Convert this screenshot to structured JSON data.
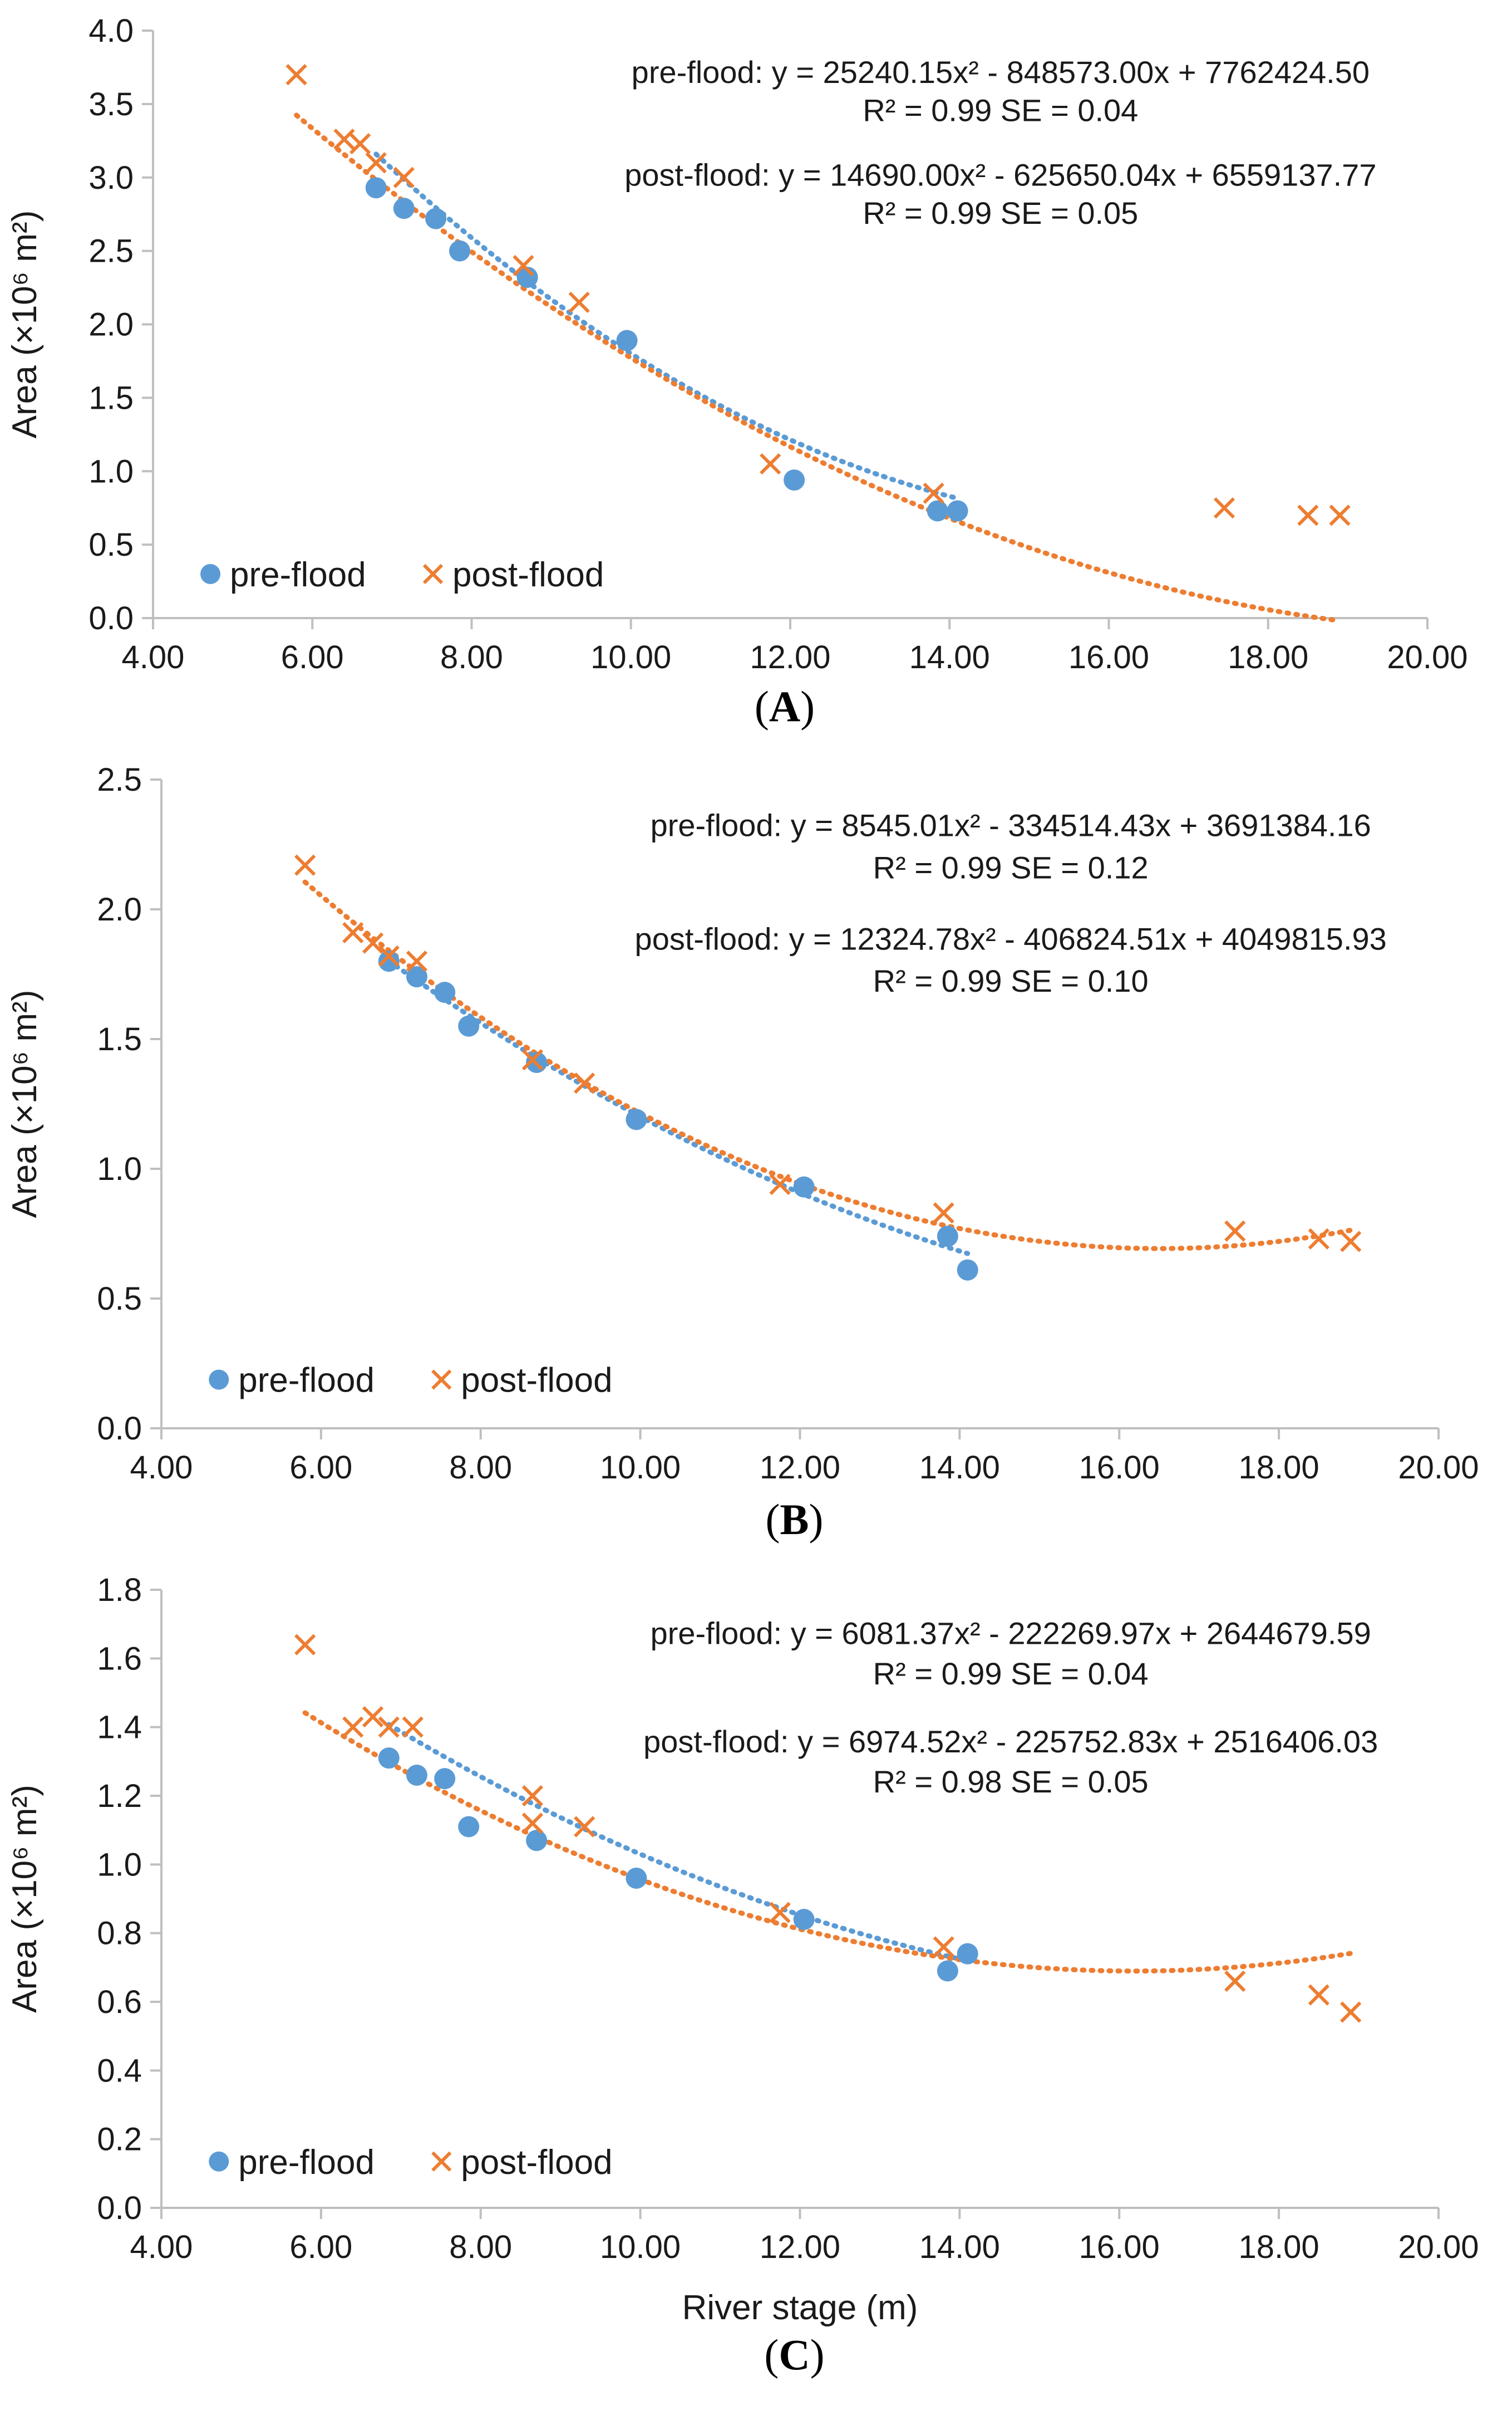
{
  "colors": {
    "pre": "#5b9bd5",
    "post": "#ed7d31",
    "axis": "#bfbfbf",
    "text": "#1a1a1a"
  },
  "x_axis_label": "River stage (m)",
  "chart_data": [
    {
      "type": "scatter",
      "panel": "A",
      "ylabel": "Area (×10⁶ m²)",
      "xlim": [
        4,
        20
      ],
      "ylim": [
        0,
        4
      ],
      "xticks": [
        "4.00",
        "6.00",
        "8.00",
        "10.00",
        "12.00",
        "14.00",
        "16.00",
        "18.00",
        "20.00"
      ],
      "yticks": [
        "0.0",
        "0.5",
        "1.0",
        "1.5",
        "2.0",
        "2.5",
        "3.0",
        "3.5",
        "4.0"
      ],
      "legend": [
        "pre-flood",
        "post-flood"
      ],
      "annotations": {
        "pre_eq": "pre-flood: y = 25240.15x² - 848573.00x + 7762424.50",
        "pre_stats": "R² = 0.99   SE = 0.04",
        "post_eq": "post-flood: y = 14690.00x² - 625650.04x + 6559137.77",
        "post_stats": "R² = 0.99    SE = 0.05"
      },
      "series": [
        {
          "name": "pre-flood",
          "marker": "circle",
          "x": [
            6.8,
            7.15,
            7.55,
            7.85,
            8.7,
            9.95,
            12.05,
            13.85,
            14.1
          ],
          "y": [
            2.93,
            2.79,
            2.72,
            2.5,
            2.32,
            1.89,
            0.94,
            0.73,
            0.73
          ],
          "trend": {
            "a": 0.02524015,
            "b": -0.848573,
            "c": 7.7624245,
            "x0": 6.8,
            "x1": 14.1
          }
        },
        {
          "name": "post-flood",
          "marker": "x",
          "x": [
            5.8,
            6.4,
            6.6,
            6.8,
            7.15,
            8.65,
            9.35,
            11.75,
            13.8,
            17.45,
            18.5,
            18.9
          ],
          "y": [
            3.7,
            3.26,
            3.23,
            3.1,
            3.0,
            2.4,
            2.15,
            1.05,
            0.85,
            0.75,
            0.7,
            0.7
          ],
          "trend": {
            "a": 0.01469,
            "b": -0.62565004,
            "c": 6.55913777,
            "x0": 5.8,
            "x1": 18.9
          }
        }
      ]
    },
    {
      "type": "scatter",
      "panel": "B",
      "ylabel": "Area (×10⁶ m²)",
      "xlim": [
        4,
        20
      ],
      "ylim": [
        0,
        2.5
      ],
      "xticks": [
        "4.00",
        "6.00",
        "8.00",
        "10.00",
        "12.00",
        "14.00",
        "16.00",
        "18.00",
        "20.00"
      ],
      "yticks": [
        "0.0",
        "0.5",
        "1.0",
        "1.5",
        "2.0",
        "2.5"
      ],
      "legend": [
        "pre-flood",
        "post-flood"
      ],
      "annotations": {
        "pre_eq": "pre-flood: y = 8545.01x² - 334514.43x + 3691384.16",
        "pre_stats": "R² = 0.99    SE = 0.12",
        "post_eq": "post-flood: y = 12324.78x² - 406824.51x + 4049815.93",
        "post_stats": "R² = 0.99    SE = 0.10"
      },
      "series": [
        {
          "name": "pre-flood",
          "marker": "circle",
          "x": [
            6.85,
            7.2,
            7.55,
            7.85,
            8.7,
            9.95,
            12.05,
            13.85,
            14.1
          ],
          "y": [
            1.8,
            1.74,
            1.68,
            1.55,
            1.41,
            1.19,
            0.93,
            0.74,
            0.61
          ],
          "trend": {
            "a": 0.00854501,
            "b": -0.33451443,
            "c": 3.69138416,
            "x0": 6.85,
            "x1": 14.1
          }
        },
        {
          "name": "post-flood",
          "marker": "x",
          "x": [
            5.8,
            6.4,
            6.65,
            6.85,
            7.2,
            8.65,
            9.3,
            11.75,
            13.8,
            17.45,
            18.5,
            18.9
          ],
          "y": [
            2.17,
            1.91,
            1.87,
            1.82,
            1.8,
            1.42,
            1.33,
            0.94,
            0.83,
            0.76,
            0.73,
            0.72
          ],
          "trend": {
            "a": 0.01232478,
            "b": -0.40682451,
            "c": 4.04981593,
            "x0": 5.8,
            "x1": 18.9
          }
        }
      ]
    },
    {
      "type": "scatter",
      "panel": "C",
      "ylabel": "Area (×10⁶ m²)",
      "xlim": [
        4,
        20
      ],
      "ylim": [
        0,
        1.8
      ],
      "xticks": [
        "4.00",
        "6.00",
        "8.00",
        "10.00",
        "12.00",
        "14.00",
        "16.00",
        "18.00",
        "20.00"
      ],
      "yticks": [
        "0.0",
        "0.2",
        "0.4",
        "0.6",
        "0.8",
        "1.0",
        "1.2",
        "1.4",
        "1.6",
        "1.8"
      ],
      "xlabel": "River stage (m)",
      "legend": [
        "pre-flood",
        "post-flood"
      ],
      "annotations": {
        "pre_eq": "pre-flood: y = 6081.37x² - 222269.97x + 2644679.59",
        "pre_stats": "R² = 0.99    SE = 0.04",
        "post_eq": "post-flood: y = 6974.52x² - 225752.83x + 2516406.03",
        "post_stats": "R² = 0.98    SE = 0.05"
      },
      "series": [
        {
          "name": "pre-flood",
          "marker": "circle",
          "x": [
            6.85,
            7.2,
            7.55,
            7.85,
            8.7,
            9.95,
            12.05,
            13.85,
            14.1
          ],
          "y": [
            1.31,
            1.26,
            1.25,
            1.11,
            1.07,
            0.96,
            0.84,
            0.69,
            0.74
          ],
          "trend": {
            "a": 0.00608137,
            "b": -0.22226997,
            "c": 2.64467959,
            "x0": 6.85,
            "x1": 14.1
          }
        },
        {
          "name": "post-flood",
          "marker": "x",
          "x": [
            5.8,
            6.4,
            6.65,
            6.85,
            7.15,
            8.65,
            8.65,
            9.3,
            11.75,
            13.8,
            17.45,
            18.5,
            18.9
          ],
          "y": [
            1.64,
            1.4,
            1.43,
            1.4,
            1.4,
            1.2,
            1.12,
            1.11,
            0.86,
            0.76,
            0.66,
            0.62,
            0.57
          ],
          "trend": {
            "a": 0.00697452,
            "b": -0.22575283,
            "c": 2.51640603,
            "x0": 5.8,
            "x1": 18.9
          }
        }
      ]
    }
  ],
  "panel_labels": [
    "A",
    "B",
    "C"
  ]
}
